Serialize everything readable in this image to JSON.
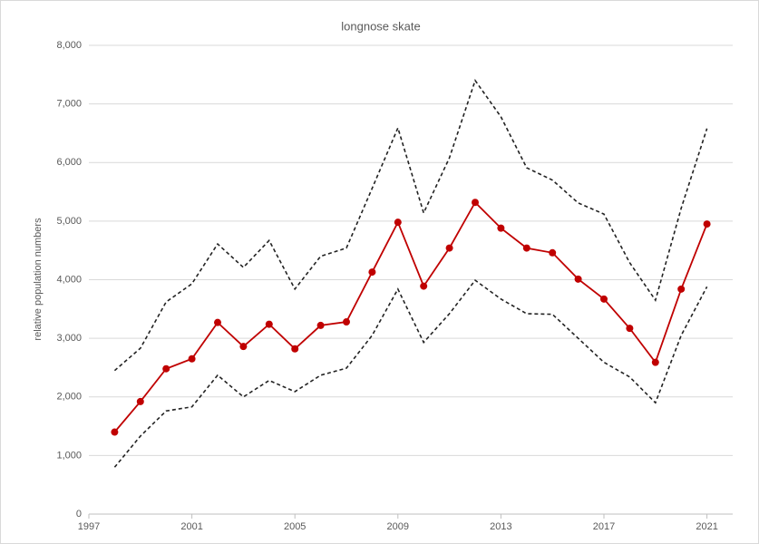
{
  "chart_data": {
    "type": "line",
    "title": "longnose skate",
    "y_label": "relative population numbers",
    "x": [
      1998,
      1999,
      2000,
      2001,
      2002,
      2003,
      2004,
      2005,
      2006,
      2007,
      2008,
      2009,
      2010,
      2011,
      2012,
      2013,
      2014,
      2015,
      2016,
      2017,
      2018,
      2019,
      2020,
      2021
    ],
    "series": [
      {
        "color": "#222222",
        "style": "dashed",
        "markers": false,
        "values": [
          2450,
          2830,
          3620,
          3930,
          4610,
          4210,
          4670,
          3840,
          4400,
          4540,
          5560,
          6590,
          5140,
          6080,
          7400,
          6780,
          5910,
          5700,
          5310,
          5120,
          4290,
          3650,
          5220,
          6580
        ]
      },
      {
        "color": "#222222",
        "style": "dashed",
        "markers": false,
        "values": [
          800,
          1330,
          1760,
          1830,
          2370,
          2000,
          2280,
          2090,
          2370,
          2490,
          3050,
          3840,
          2930,
          3420,
          3990,
          3670,
          3420,
          3410,
          3000,
          2590,
          2340,
          1900,
          3050,
          3880
        ]
      },
      {
        "color": "#c00000",
        "style": "solid",
        "markers": true,
        "values": [
          1400,
          1920,
          2480,
          2650,
          3270,
          2860,
          3240,
          2820,
          3220,
          3280,
          4130,
          4980,
          3890,
          4540,
          5320,
          4880,
          4540,
          4460,
          4010,
          3670,
          3170,
          2590,
          3840,
          4950
        ]
      }
    ],
    "xlim": [
      1997,
      2022
    ],
    "xticks": [
      1997,
      2001,
      2005,
      2009,
      2013,
      2017,
      2021
    ],
    "ylim": [
      0,
      8000
    ],
    "yticks": [
      0,
      {
        "value": 1000,
        "label": "1,000"
      },
      {
        "value": 2000,
        "label": "2,000"
      },
      {
        "value": 3000,
        "label": "3,000"
      },
      {
        "value": 4000,
        "label": "4,000"
      },
      {
        "value": 5000,
        "label": "5,000"
      },
      {
        "value": 6000,
        "label": "6,000"
      },
      {
        "value": 7000,
        "label": "7,000"
      },
      {
        "value": 8000,
        "label": "8,000"
      }
    ],
    "grid": true
  }
}
